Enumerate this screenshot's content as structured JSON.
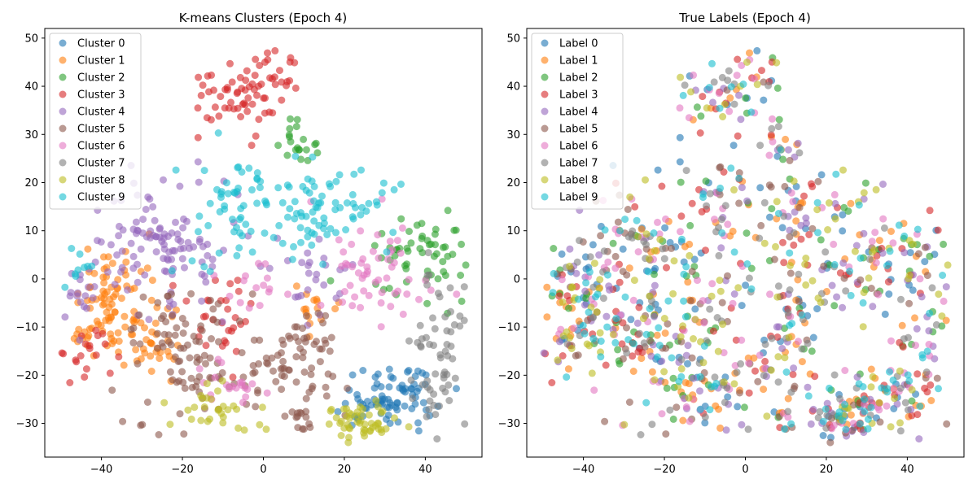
{
  "colors": [
    "#1f77b4",
    "#ff7f0e",
    "#2ca02c",
    "#d62728",
    "#9467bd",
    "#8c564b",
    "#e377c2",
    "#7f7f7f",
    "#bcbd22",
    "#17becf"
  ],
  "chart_data": [
    {
      "type": "scatter",
      "title": "K-means Clusters (Epoch 4)",
      "xlim": [
        -54,
        54
      ],
      "ylim": [
        -37,
        52
      ],
      "xticks": [
        -40,
        -20,
        0,
        20,
        40
      ],
      "yticks": [
        -30,
        -20,
        -10,
        0,
        10,
        20,
        30,
        40,
        50
      ],
      "grid": false,
      "legend_position": "upper-left",
      "series": [
        {
          "name": "Cluster 0",
          "clusters": [
            {
              "x": 33,
              "y": -24,
              "sx": 6,
              "sy": 3.5,
              "n": 60
            },
            {
              "x": 26,
              "y": -27,
              "sx": 3,
              "sy": 2,
              "n": 20
            }
          ]
        },
        {
          "name": "Cluster 1",
          "clusters": [
            {
              "x": -38,
              "y": -5,
              "sx": 4.5,
              "sy": 6,
              "n": 90
            },
            {
              "x": -28,
              "y": -12,
              "sx": 3,
              "sy": 4,
              "n": 30
            },
            {
              "x": 12,
              "y": -6,
              "sx": 4,
              "sy": 3,
              "n": 15
            }
          ]
        },
        {
          "name": "Cluster 2",
          "clusters": [
            {
              "x": 38,
              "y": 5,
              "sx": 6,
              "sy": 5,
              "n": 60
            },
            {
              "x": 8,
              "y": 28,
              "sx": 3,
              "sy": 2.5,
              "n": 20
            }
          ]
        },
        {
          "name": "Cluster 3",
          "clusters": [
            {
              "x": -8,
              "y": 38,
              "sx": 6,
              "sy": 4,
              "n": 50
            },
            {
              "x": 3,
              "y": 43,
              "sx": 3,
              "sy": 3,
              "n": 25
            },
            {
              "x": -10,
              "y": -7,
              "sx": 4,
              "sy": 4,
              "n": 30
            },
            {
              "x": -42,
              "y": -15,
              "sx": 4,
              "sy": 3,
              "n": 20
            }
          ]
        },
        {
          "name": "Cluster 4",
          "clusters": [
            {
              "x": -25,
              "y": 8,
              "sx": 8,
              "sy": 7,
              "n": 110
            },
            {
              "x": 12,
              "y": 2,
              "sx": 5,
              "sy": 4,
              "n": 25
            },
            {
              "x": -45,
              "y": -4,
              "sx": 3,
              "sy": 3,
              "n": 20
            }
          ]
        },
        {
          "name": "Cluster 5",
          "clusters": [
            {
              "x": -20,
              "y": -15,
              "sx": 7,
              "sy": 7,
              "n": 90
            },
            {
              "x": 5,
              "y": -17,
              "sx": 6,
              "sy": 4,
              "n": 45
            },
            {
              "x": 14,
              "y": -15,
              "sx": 4,
              "sy": 5,
              "n": 25
            },
            {
              "x": 9,
              "y": -29,
              "sx": 2,
              "sy": 2,
              "n": 15
            }
          ]
        },
        {
          "name": "Cluster 6",
          "clusters": [
            {
              "x": 28,
              "y": 3,
              "sx": 7,
              "sy": 6,
              "n": 55
            },
            {
              "x": -8,
              "y": -22,
              "sx": 5,
              "sy": 3,
              "n": 20
            },
            {
              "x": -2,
              "y": 0,
              "sx": 4,
              "sy": 3,
              "n": 15
            }
          ]
        },
        {
          "name": "Cluster 7",
          "clusters": [
            {
              "x": 44,
              "y": -15,
              "sx": 4,
              "sy": 7,
              "n": 60
            }
          ]
        },
        {
          "name": "Cluster 8",
          "clusters": [
            {
              "x": 24,
              "y": -30,
              "sx": 4,
              "sy": 2,
              "n": 50
            },
            {
              "x": -10,
              "y": -27,
              "sx": 6,
              "sy": 3,
              "n": 30
            }
          ]
        },
        {
          "name": "Cluster 9",
          "clusters": [
            {
              "x": 15,
              "y": 15,
              "sx": 9,
              "sy": 5,
              "n": 80
            },
            {
              "x": -8,
              "y": 15,
              "sx": 6,
              "sy": 6,
              "n": 50
            },
            {
              "x": -45,
              "y": 2,
              "sx": 2,
              "sy": 2,
              "n": 10
            }
          ]
        }
      ]
    },
    {
      "type": "scatter",
      "title": "True Labels (Epoch 4)",
      "xlim": [
        -54,
        54
      ],
      "ylim": [
        -37,
        52
      ],
      "xticks": [
        -40,
        -20,
        0,
        20,
        40
      ],
      "yticks": [
        -30,
        -20,
        -10,
        0,
        10,
        20,
        30,
        40,
        50
      ],
      "grid": false,
      "legend_position": "upper-left",
      "series": [
        {
          "name": "Label 0"
        },
        {
          "name": "Label 1"
        },
        {
          "name": "Label 2"
        },
        {
          "name": "Label 3"
        },
        {
          "name": "Label 4"
        },
        {
          "name": "Label 5"
        },
        {
          "name": "Label 6"
        },
        {
          "name": "Label 7"
        },
        {
          "name": "Label 8"
        },
        {
          "name": "Label 9"
        }
      ]
    }
  ]
}
